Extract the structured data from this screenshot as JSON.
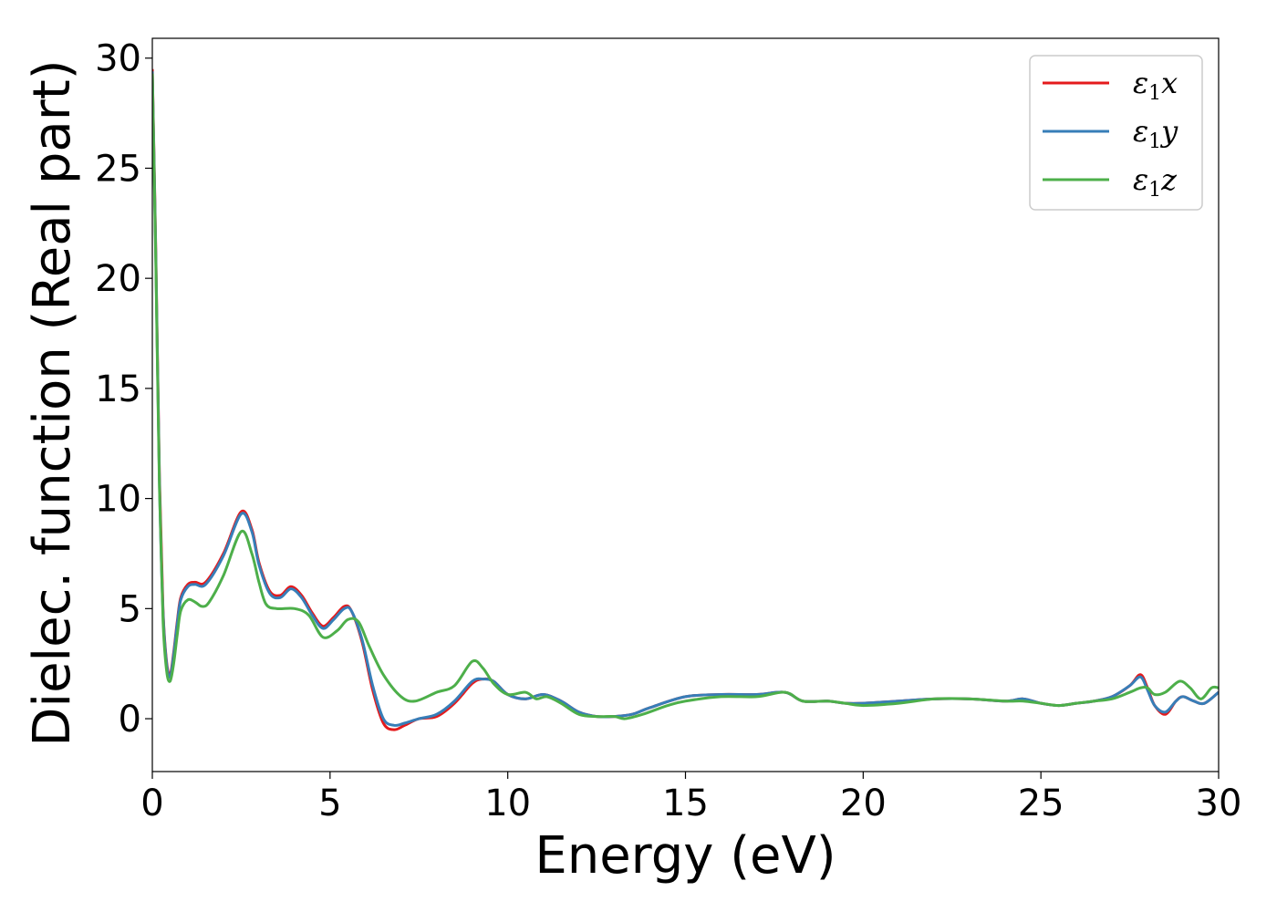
{
  "chart_data": {
    "type": "line",
    "title": "",
    "xlabel": "Energy (eV)",
    "ylabel": "Dielec. function (Real part)",
    "xlim": [
      0,
      30
    ],
    "ylim": [
      -2.4,
      30.9
    ],
    "xticks": [
      0,
      5,
      10,
      15,
      20,
      25,
      30
    ],
    "yticks": [
      0,
      5,
      10,
      15,
      20,
      25,
      30
    ],
    "grid": false,
    "legend_position": "top-right",
    "series": [
      {
        "name": "ε₁x",
        "legend_base": "ε",
        "legend_sub": "1",
        "legend_var": "x",
        "color": "#e41a1c",
        "x": [
          0,
          0.1,
          0.2,
          0.3,
          0.4,
          0.5,
          0.6,
          0.7,
          0.8,
          1.0,
          1.2,
          1.5,
          2.0,
          2.5,
          2.8,
          3.0,
          3.3,
          3.6,
          3.9,
          4.2,
          4.5,
          4.8,
          5.1,
          5.4,
          5.6,
          5.9,
          6.2,
          6.5,
          6.8,
          7.1,
          7.5,
          8.0,
          8.5,
          9.0,
          9.3,
          9.6,
          10.0,
          10.5,
          11.0,
          11.5,
          12.0,
          12.5,
          13.0,
          13.5,
          14.0,
          15.0,
          16.0,
          17.0,
          17.8,
          18.3,
          19.0,
          19.5,
          20.0,
          21.0,
          22.0,
          23.0,
          24.0,
          24.5,
          25.0,
          25.5,
          26.0,
          26.5,
          27.0,
          27.5,
          27.8,
          28.0,
          28.2,
          28.5,
          28.8,
          29.0,
          29.3,
          29.6,
          30.0
        ],
        "y": [
          29.5,
          21,
          11,
          5,
          2.6,
          2.0,
          3.0,
          4.4,
          5.5,
          6.1,
          6.2,
          6.2,
          7.5,
          9.4,
          8.6,
          7.1,
          5.8,
          5.6,
          6.0,
          5.6,
          4.8,
          4.2,
          4.6,
          5.1,
          4.9,
          3.5,
          1.3,
          -0.2,
          -0.5,
          -0.3,
          0.0,
          0.1,
          0.7,
          1.6,
          1.8,
          1.7,
          1.1,
          0.9,
          1.1,
          0.8,
          0.3,
          0.1,
          0.1,
          0.2,
          0.5,
          1.0,
          1.1,
          1.1,
          1.2,
          0.8,
          0.8,
          0.7,
          0.7,
          0.8,
          0.9,
          0.9,
          0.8,
          0.9,
          0.7,
          0.6,
          0.7,
          0.8,
          1.0,
          1.5,
          2.0,
          1.4,
          0.6,
          0.2,
          0.8,
          1.0,
          0.8,
          0.7,
          1.2
        ]
      },
      {
        "name": "ε₁y",
        "legend_base": "ε",
        "legend_sub": "1",
        "legend_var": "y",
        "color": "#377eb8",
        "x": [
          0,
          0.1,
          0.2,
          0.3,
          0.4,
          0.5,
          0.6,
          0.7,
          0.8,
          1.0,
          1.2,
          1.5,
          2.0,
          2.5,
          2.8,
          3.0,
          3.3,
          3.6,
          3.9,
          4.2,
          4.5,
          4.8,
          5.1,
          5.4,
          5.6,
          5.9,
          6.2,
          6.5,
          6.8,
          7.1,
          7.5,
          8.0,
          8.5,
          9.0,
          9.3,
          9.6,
          10.0,
          10.5,
          11.0,
          11.5,
          12.0,
          12.5,
          13.0,
          13.5,
          14.0,
          15.0,
          16.0,
          17.0,
          17.8,
          18.3,
          19.0,
          19.5,
          20.0,
          21.0,
          22.0,
          23.0,
          24.0,
          24.5,
          25.0,
          25.5,
          26.0,
          26.5,
          27.0,
          27.5,
          27.8,
          28.0,
          28.2,
          28.5,
          28.8,
          29.0,
          29.3,
          29.6,
          30.0
        ],
        "y": [
          29.4,
          20.8,
          10.8,
          4.9,
          2.5,
          1.9,
          2.9,
          4.3,
          5.4,
          6.0,
          6.1,
          6.1,
          7.4,
          9.3,
          8.5,
          7.0,
          5.7,
          5.5,
          5.9,
          5.5,
          4.7,
          4.1,
          4.5,
          5.0,
          4.9,
          3.6,
          1.5,
          0.0,
          -0.3,
          -0.2,
          0.0,
          0.2,
          0.8,
          1.7,
          1.8,
          1.7,
          1.1,
          0.9,
          1.1,
          0.8,
          0.3,
          0.1,
          0.1,
          0.2,
          0.5,
          1.0,
          1.1,
          1.1,
          1.2,
          0.8,
          0.8,
          0.7,
          0.7,
          0.8,
          0.9,
          0.9,
          0.8,
          0.9,
          0.7,
          0.6,
          0.7,
          0.8,
          1.0,
          1.5,
          1.9,
          1.3,
          0.6,
          0.3,
          0.8,
          1.0,
          0.8,
          0.7,
          1.2
        ]
      },
      {
        "name": "ε₁z",
        "legend_base": "ε",
        "legend_sub": "1",
        "legend_var": "z",
        "color": "#4daf4a",
        "x": [
          0,
          0.1,
          0.2,
          0.3,
          0.4,
          0.5,
          0.6,
          0.7,
          0.8,
          1.0,
          1.2,
          1.4,
          1.6,
          2.0,
          2.5,
          2.8,
          3.0,
          3.2,
          3.5,
          4.0,
          4.4,
          4.8,
          5.2,
          5.5,
          5.8,
          6.1,
          6.5,
          7.0,
          7.4,
          8.0,
          8.5,
          9.0,
          9.3,
          9.6,
          10.0,
          10.5,
          10.8,
          11.1,
          11.5,
          12.0,
          12.5,
          13.0,
          13.3,
          13.8,
          14.5,
          15.0,
          16.0,
          17.0,
          17.8,
          18.3,
          19.0,
          19.5,
          20.0,
          21.0,
          22.0,
          23.0,
          24.0,
          24.5,
          25.0,
          25.5,
          26.0,
          26.5,
          27.0,
          27.5,
          27.8,
          28.0,
          28.2,
          28.5,
          28.9,
          29.2,
          29.5,
          29.8,
          30.0
        ],
        "y": [
          29.3,
          20.5,
          10.5,
          4.5,
          2.2,
          1.7,
          2.5,
          3.8,
          4.9,
          5.4,
          5.3,
          5.1,
          5.3,
          6.5,
          8.5,
          7.5,
          6.2,
          5.2,
          5.0,
          5.0,
          4.7,
          3.7,
          4.0,
          4.5,
          4.4,
          3.3,
          2.0,
          1.0,
          0.8,
          1.2,
          1.5,
          2.6,
          2.3,
          1.6,
          1.1,
          1.2,
          0.9,
          1.0,
          0.7,
          0.2,
          0.1,
          0.1,
          0.0,
          0.2,
          0.6,
          0.8,
          1.0,
          1.0,
          1.2,
          0.8,
          0.8,
          0.7,
          0.6,
          0.7,
          0.9,
          0.9,
          0.8,
          0.8,
          0.7,
          0.6,
          0.7,
          0.8,
          0.9,
          1.2,
          1.4,
          1.4,
          1.1,
          1.2,
          1.7,
          1.4,
          0.9,
          1.4,
          1.4
        ]
      }
    ]
  }
}
